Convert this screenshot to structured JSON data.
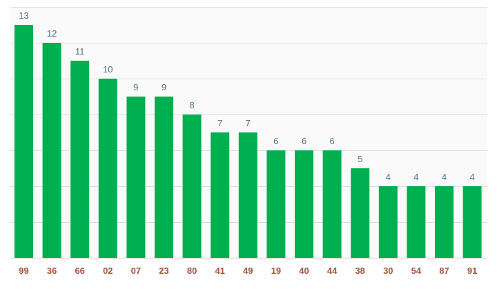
{
  "colors": {
    "bar": "#00af50",
    "plot_background": "#fafafa",
    "grid": "#dedede",
    "value_label": "#4f7282",
    "category_label": "#a0573e"
  },
  "chart_data": {
    "type": "bar",
    "categories": [
      "99",
      "36",
      "66",
      "02",
      "07",
      "23",
      "80",
      "41",
      "49",
      "19",
      "40",
      "44",
      "38",
      "30",
      "54",
      "87",
      "91"
    ],
    "values": [
      13,
      12,
      11,
      10,
      9,
      9,
      8,
      7,
      7,
      6,
      6,
      6,
      5,
      4,
      4,
      4,
      4
    ],
    "ylim": [
      0,
      14
    ],
    "grid": true,
    "data_labels": true
  }
}
